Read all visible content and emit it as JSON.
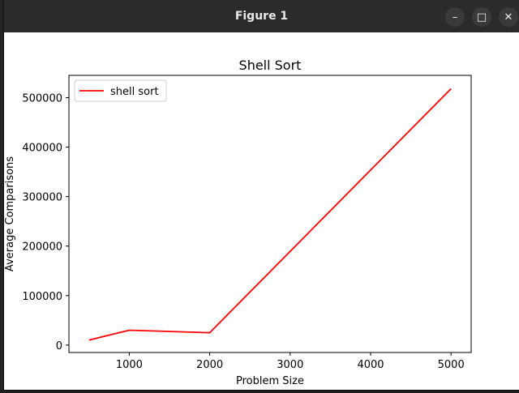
{
  "window": {
    "title": "Figure 1",
    "controls": {
      "minimize": "–",
      "maximize": "□",
      "close": "✕"
    }
  },
  "chart_data": {
    "type": "line",
    "title": "Shell Sort",
    "xlabel": "Problem Size",
    "ylabel": "Average Comparisons",
    "x": [
      500,
      1000,
      2000,
      5000
    ],
    "series": [
      {
        "name": "shell sort",
        "color": "#ff0000",
        "values": [
          10000,
          30000,
          25000,
          518000
        ]
      }
    ],
    "xlim": [
      250,
      5250
    ],
    "ylim": [
      -15000,
      545000
    ],
    "xticks": [
      1000,
      2000,
      3000,
      4000,
      5000
    ],
    "yticks": [
      0,
      100000,
      200000,
      300000,
      400000,
      500000
    ],
    "grid": false,
    "legend_position": "top-left"
  }
}
